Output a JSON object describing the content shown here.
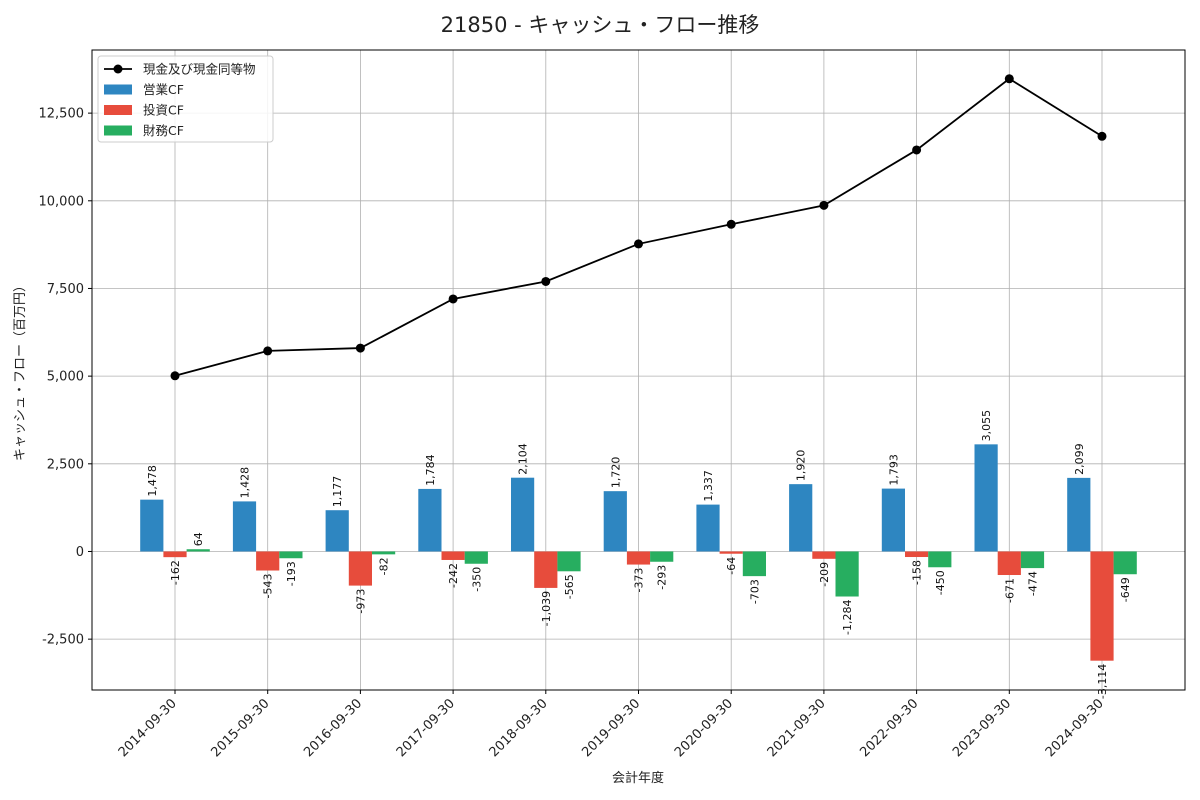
{
  "chart_data": {
    "type": "bar",
    "title": "21850 - キャッシュ・フロー推移",
    "xlabel": "会計年度",
    "ylabel": "キャッシュ・フロー（百万円）",
    "ylim": [
      -3950,
      14300
    ],
    "yticks": [
      -2500,
      0,
      2500,
      5000,
      7500,
      10000,
      12500
    ],
    "ytick_labels": [
      "-2,500",
      "0",
      "2,500",
      "5,000",
      "7,500",
      "10,000",
      "12,500"
    ],
    "grid": true,
    "legend_position": "top-left",
    "categories": [
      "2014-09-30",
      "2015-09-30",
      "2016-09-30",
      "2017-09-30",
      "2018-09-30",
      "2019-09-30",
      "2020-09-30",
      "2021-09-30",
      "2022-09-30",
      "2023-09-30",
      "2024-09-30"
    ],
    "series": [
      {
        "name": "営業CF",
        "kind": "bar",
        "color": "#2e86c1",
        "values": [
          1478,
          1428,
          1177,
          1784,
          2104,
          1720,
          1337,
          1920,
          1793,
          3055,
          2099
        ],
        "labels": [
          "1,478",
          "1,428",
          "1,177",
          "1,784",
          "2,104",
          "1,720",
          "1,337",
          "1,920",
          "1,793",
          "3,055",
          "2,099"
        ]
      },
      {
        "name": "投資CF",
        "kind": "bar",
        "color": "#e74c3c",
        "values": [
          -162,
          -543,
          -973,
          -242,
          -1039,
          -373,
          -64,
          -209,
          -158,
          -671,
          -3114
        ],
        "labels": [
          "-162",
          "-543",
          "-973",
          "-242",
          "-1,039",
          "-373",
          "-64",
          "-209",
          "-158",
          "-671",
          "-3,114"
        ]
      },
      {
        "name": "財務CF",
        "kind": "bar",
        "color": "#27ae60",
        "values": [
          64,
          -193,
          -82,
          -350,
          -565,
          -293,
          -703,
          -1284,
          -450,
          -474,
          -649
        ],
        "labels": [
          "64",
          "-193",
          "-82",
          "-350",
          "-565",
          "-293",
          "-703",
          "-1,284",
          "-450",
          "-474",
          "-649"
        ]
      },
      {
        "name": "現金及び現金同等物",
        "kind": "line",
        "color": "#000000",
        "values": [
          5010,
          5720,
          5800,
          7200,
          7700,
          8770,
          9330,
          9870,
          11450,
          13480,
          11840
        ]
      }
    ]
  }
}
